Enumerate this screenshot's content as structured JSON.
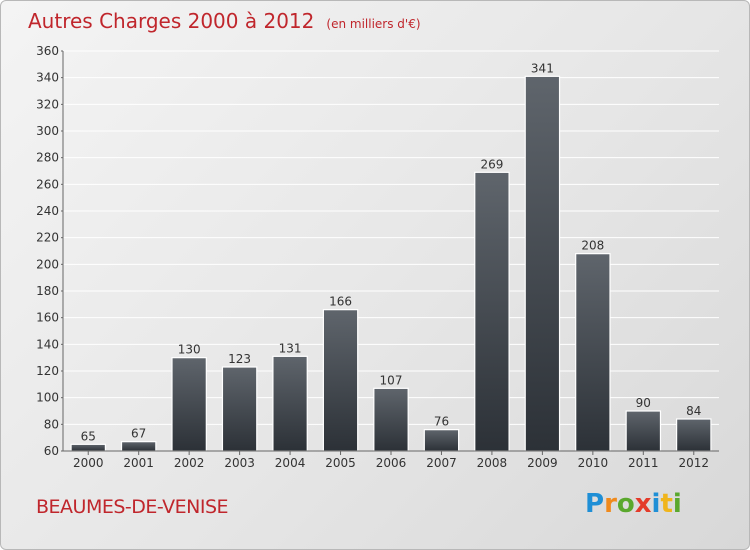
{
  "chart_data": {
    "type": "bar",
    "title": "Autres Charges 2000 à 2012",
    "subtitle": "(en milliers d'€)",
    "categories": [
      "2000",
      "2001",
      "2002",
      "2003",
      "2004",
      "2005",
      "2006",
      "2007",
      "2008",
      "2009",
      "2010",
      "2011",
      "2012"
    ],
    "values": [
      65,
      67,
      130,
      123,
      131,
      166,
      107,
      76,
      269,
      341,
      208,
      90,
      84
    ],
    "ylim": [
      60,
      360
    ],
    "yticks": [
      60,
      80,
      100,
      120,
      140,
      160,
      180,
      200,
      220,
      240,
      260,
      280,
      300,
      320,
      340,
      360
    ],
    "grid": true,
    "bar_color": "#3f454c",
    "xlabel": "",
    "ylabel": ""
  },
  "footer": {
    "city": "BEAUMES-DE-VENISE",
    "logo": {
      "letters": [
        "P",
        "r",
        "o",
        "x",
        "i",
        "t",
        "i"
      ],
      "colors": [
        "#1f8fd6",
        "#f08a1c",
        "#5aa82d",
        "#e43b2a",
        "#1f8fd6",
        "#f0b51c",
        "#5aa82d"
      ]
    }
  }
}
